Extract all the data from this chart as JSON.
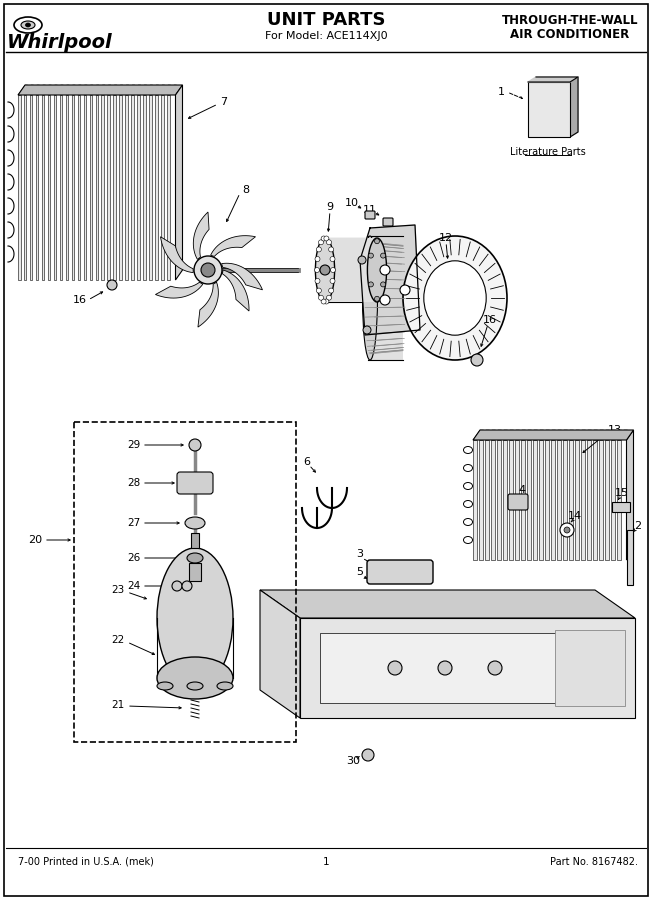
{
  "title": "UNIT PARTS",
  "subtitle": "For Model: ACE114XJ0",
  "brand": "Whirlpool",
  "right_title_1": "THROUGH-THE-WALL",
  "right_title_2": "AIR CONDITIONER",
  "footer_left": "7-00 Printed in U.S.A. (mek)",
  "footer_center": "1",
  "footer_right": "Part No. 8167482.",
  "lit_parts_label": "Literature Parts",
  "bg_color": "#ffffff",
  "fig_width": 6.52,
  "fig_height": 9.0,
  "dpi": 100
}
